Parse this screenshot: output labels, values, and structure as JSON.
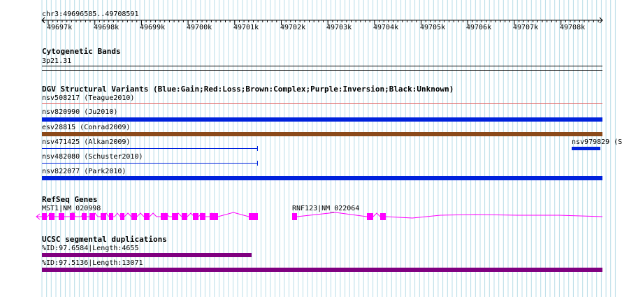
{
  "ruler": {
    "position": "chr3:49696585..49708591",
    "ticks": [
      "49697k",
      "49698k",
      "49699k",
      "49700k",
      "49701k",
      "49702k",
      "49703k",
      "49704k",
      "49705k",
      "49706k",
      "49707k",
      "49708k"
    ]
  },
  "cytoband": {
    "title": "Cytogenetic Bands",
    "band": "3p21.31"
  },
  "dgv": {
    "title": "DGV Structural Variants (Blue:Gain;Red:Loss;Brown:Complex;Purple:Inversion;Black:Unknown)",
    "items": [
      {
        "label": "nsv508217 (Teague2010)",
        "color": "#e06060"
      },
      {
        "label": "nsv820990 (Ju2010)",
        "color": "#0022dd"
      },
      {
        "label": "esv28815 (Conrad2009)",
        "color": "#8b4a1a"
      },
      {
        "label": "nsv471425 (Alkan2009)",
        "color": "#0022dd"
      },
      {
        "label": "nsv979829 (S",
        "color": "#0022dd"
      },
      {
        "label": "nsv482080 (Schuster2010)",
        "color": "#0022dd"
      },
      {
        "label": "nsv822077 (Park2010)",
        "color": "#0022dd"
      }
    ]
  },
  "refseq": {
    "title": "RefSeq Genes",
    "genes": [
      {
        "label": "MST1|NM_020998",
        "color": "#ff00ff"
      },
      {
        "label": "RNF123|NM_022064",
        "color": "#ff00ff"
      }
    ]
  },
  "segdup": {
    "title": "UCSC segmental duplications",
    "items": [
      {
        "label": "%ID:97.6584|Length:4655",
        "color": "#800080"
      },
      {
        "label": "%ID:97.5136|Length:13071",
        "color": "#800080"
      }
    ]
  }
}
